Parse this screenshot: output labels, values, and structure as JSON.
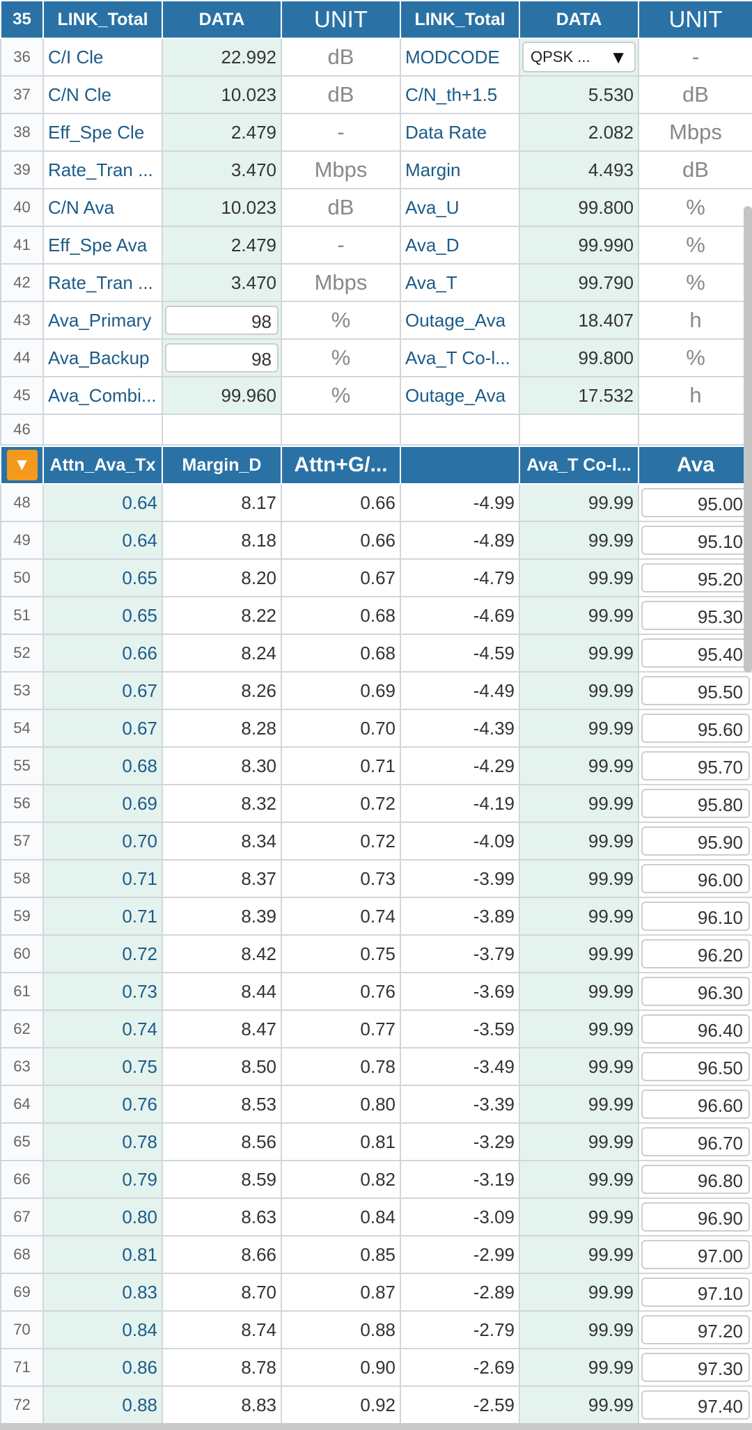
{
  "header": {
    "row_num": "35",
    "col1": "LINK_Total",
    "col2": "DATA",
    "col3": "UNIT",
    "col4": "LINK_Total",
    "col5": "DATA",
    "col6": "UNIT"
  },
  "link_rows": [
    {
      "n": "36",
      "l1": "C/I Cle",
      "d1": "22.992",
      "u1": "dB",
      "l2": "MODCODE",
      "d2": "QPSK ...",
      "u2": "-"
    },
    {
      "n": "37",
      "l1": "C/N Cle",
      "d1": "10.023",
      "u1": "dB",
      "l2": "C/N_th+1.5",
      "d2": "5.530",
      "u2": "dB"
    },
    {
      "n": "38",
      "l1": "Eff_Spe Cle",
      "d1": "2.479",
      "u1": "-",
      "l2": "Data Rate",
      "d2": "2.082",
      "u2": "Mbps"
    },
    {
      "n": "39",
      "l1": "Rate_Tran ...",
      "d1": "3.470",
      "u1": "Mbps",
      "l2": "Margin",
      "d2": "4.493",
      "u2": "dB"
    },
    {
      "n": "40",
      "l1": "C/N Ava",
      "d1": "10.023",
      "u1": "dB",
      "l2": "Ava_U",
      "d2": "99.800",
      "u2": "%"
    },
    {
      "n": "41",
      "l1": "Eff_Spe Ava",
      "d1": "2.479",
      "u1": "-",
      "l2": "Ava_D",
      "d2": "99.990",
      "u2": "%"
    },
    {
      "n": "42",
      "l1": "Rate_Tran ...",
      "d1": "3.470",
      "u1": "Mbps",
      "l2": "Ava_T",
      "d2": "99.790",
      "u2": "%"
    },
    {
      "n": "43",
      "l1": "Ava_Primary",
      "d1": "98",
      "u1": "%",
      "l2": "Outage_Ava",
      "d2": "18.407",
      "u2": "h"
    },
    {
      "n": "44",
      "l1": "Ava_Backup",
      "d1": "98",
      "u1": "%",
      "l2": "Ava_T Co-l...",
      "d2": "99.800",
      "u2": "%"
    },
    {
      "n": "45",
      "l1": "Ava_Combi...",
      "d1": "99.960",
      "u1": "%",
      "l2": "Outage_Ava",
      "d2": "17.532",
      "u2": "h"
    }
  ],
  "blank_row_num": "46",
  "table2_header": {
    "filter_icon": "filter-down-triangle-icon",
    "col1": "Attn_Ava_Tx",
    "col2": "Margin_D",
    "col3": "Attn+G/...",
    "col4": "",
    "col5": "Ava_T Co-l...",
    "col6": "Ava"
  },
  "data_rows": [
    {
      "n": "48",
      "a": "0.64",
      "b": "8.17",
      "c": "0.66",
      "d": "-4.99",
      "e": "99.99",
      "f": "95.00"
    },
    {
      "n": "49",
      "a": "0.64",
      "b": "8.18",
      "c": "0.66",
      "d": "-4.89",
      "e": "99.99",
      "f": "95.10"
    },
    {
      "n": "50",
      "a": "0.65",
      "b": "8.20",
      "c": "0.67",
      "d": "-4.79",
      "e": "99.99",
      "f": "95.20"
    },
    {
      "n": "51",
      "a": "0.65",
      "b": "8.22",
      "c": "0.68",
      "d": "-4.69",
      "e": "99.99",
      "f": "95.30"
    },
    {
      "n": "52",
      "a": "0.66",
      "b": "8.24",
      "c": "0.68",
      "d": "-4.59",
      "e": "99.99",
      "f": "95.40"
    },
    {
      "n": "53",
      "a": "0.67",
      "b": "8.26",
      "c": "0.69",
      "d": "-4.49",
      "e": "99.99",
      "f": "95.50"
    },
    {
      "n": "54",
      "a": "0.67",
      "b": "8.28",
      "c": "0.70",
      "d": "-4.39",
      "e": "99.99",
      "f": "95.60"
    },
    {
      "n": "55",
      "a": "0.68",
      "b": "8.30",
      "c": "0.71",
      "d": "-4.29",
      "e": "99.99",
      "f": "95.70"
    },
    {
      "n": "56",
      "a": "0.69",
      "b": "8.32",
      "c": "0.72",
      "d": "-4.19",
      "e": "99.99",
      "f": "95.80"
    },
    {
      "n": "57",
      "a": "0.70",
      "b": "8.34",
      "c": "0.72",
      "d": "-4.09",
      "e": "99.99",
      "f": "95.90"
    },
    {
      "n": "58",
      "a": "0.71",
      "b": "8.37",
      "c": "0.73",
      "d": "-3.99",
      "e": "99.99",
      "f": "96.00"
    },
    {
      "n": "59",
      "a": "0.71",
      "b": "8.39",
      "c": "0.74",
      "d": "-3.89",
      "e": "99.99",
      "f": "96.10"
    },
    {
      "n": "60",
      "a": "0.72",
      "b": "8.42",
      "c": "0.75",
      "d": "-3.79",
      "e": "99.99",
      "f": "96.20"
    },
    {
      "n": "61",
      "a": "0.73",
      "b": "8.44",
      "c": "0.76",
      "d": "-3.69",
      "e": "99.99",
      "f": "96.30"
    },
    {
      "n": "62",
      "a": "0.74",
      "b": "8.47",
      "c": "0.77",
      "d": "-3.59",
      "e": "99.99",
      "f": "96.40"
    },
    {
      "n": "63",
      "a": "0.75",
      "b": "8.50",
      "c": "0.78",
      "d": "-3.49",
      "e": "99.99",
      "f": "96.50"
    },
    {
      "n": "64",
      "a": "0.76",
      "b": "8.53",
      "c": "0.80",
      "d": "-3.39",
      "e": "99.99",
      "f": "96.60"
    },
    {
      "n": "65",
      "a": "0.78",
      "b": "8.56",
      "c": "0.81",
      "d": "-3.29",
      "e": "99.99",
      "f": "96.70"
    },
    {
      "n": "66",
      "a": "0.79",
      "b": "8.59",
      "c": "0.82",
      "d": "-3.19",
      "e": "99.99",
      "f": "96.80"
    },
    {
      "n": "67",
      "a": "0.80",
      "b": "8.63",
      "c": "0.84",
      "d": "-3.09",
      "e": "99.99",
      "f": "96.90"
    },
    {
      "n": "68",
      "a": "0.81",
      "b": "8.66",
      "c": "0.85",
      "d": "-2.99",
      "e": "99.99",
      "f": "97.00"
    },
    {
      "n": "69",
      "a": "0.83",
      "b": "8.70",
      "c": "0.87",
      "d": "-2.89",
      "e": "99.99",
      "f": "97.10"
    },
    {
      "n": "70",
      "a": "0.84",
      "b": "8.74",
      "c": "0.88",
      "d": "-2.79",
      "e": "99.99",
      "f": "97.20"
    },
    {
      "n": "71",
      "a": "0.86",
      "b": "8.78",
      "c": "0.90",
      "d": "-2.69",
      "e": "99.99",
      "f": "97.30"
    },
    {
      "n": "72",
      "a": "0.88",
      "b": "8.83",
      "c": "0.92",
      "d": "-2.59",
      "e": "99.99",
      "f": "97.40"
    }
  ],
  "colors": {
    "header_blue": "#2a72a6",
    "cell_tint": "#e5f3ef",
    "label_blue": "#1c5b88",
    "filter_orange": "#f39a1e"
  }
}
